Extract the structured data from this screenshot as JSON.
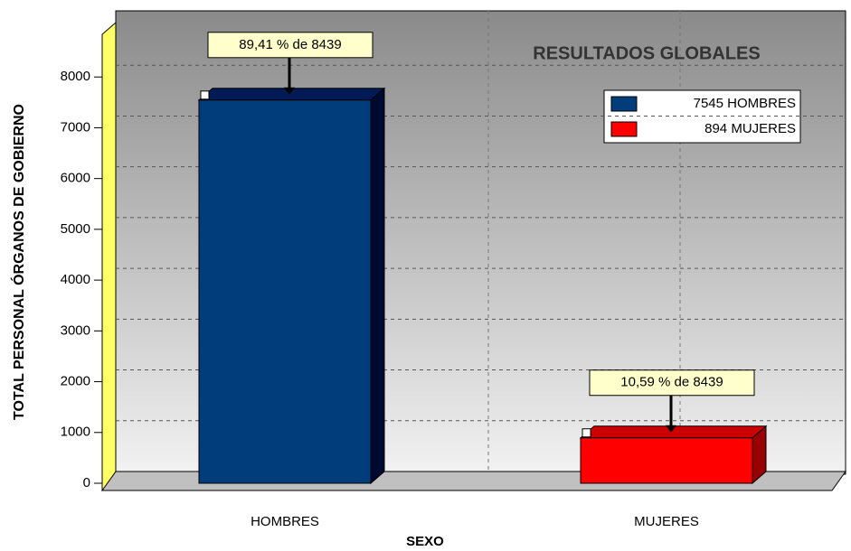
{
  "chart_data": {
    "type": "bar3d",
    "title": "RESULTADOS GLOBALES",
    "xlabel": "SEXO",
    "ylabel": "TOTAL PERSONAL ÓRGANOS DE GOBIERNO",
    "categories": [
      "HOMBRES",
      "MUJERES"
    ],
    "series": [
      {
        "name": "7545 HOMBRES",
        "color": "#003d7a",
        "values": [
          7545,
          null
        ]
      },
      {
        "name": "894 MUJERES",
        "color": "#ff0000",
        "values": [
          null,
          894
        ]
      }
    ],
    "annotations": [
      "89,41 % de 8439",
      "10,59 % de 8439"
    ],
    "ylim": [
      0,
      9000
    ],
    "yticks": [
      0,
      1000,
      2000,
      3000,
      4000,
      5000,
      6000,
      7000,
      8000
    ],
    "grid": true
  }
}
